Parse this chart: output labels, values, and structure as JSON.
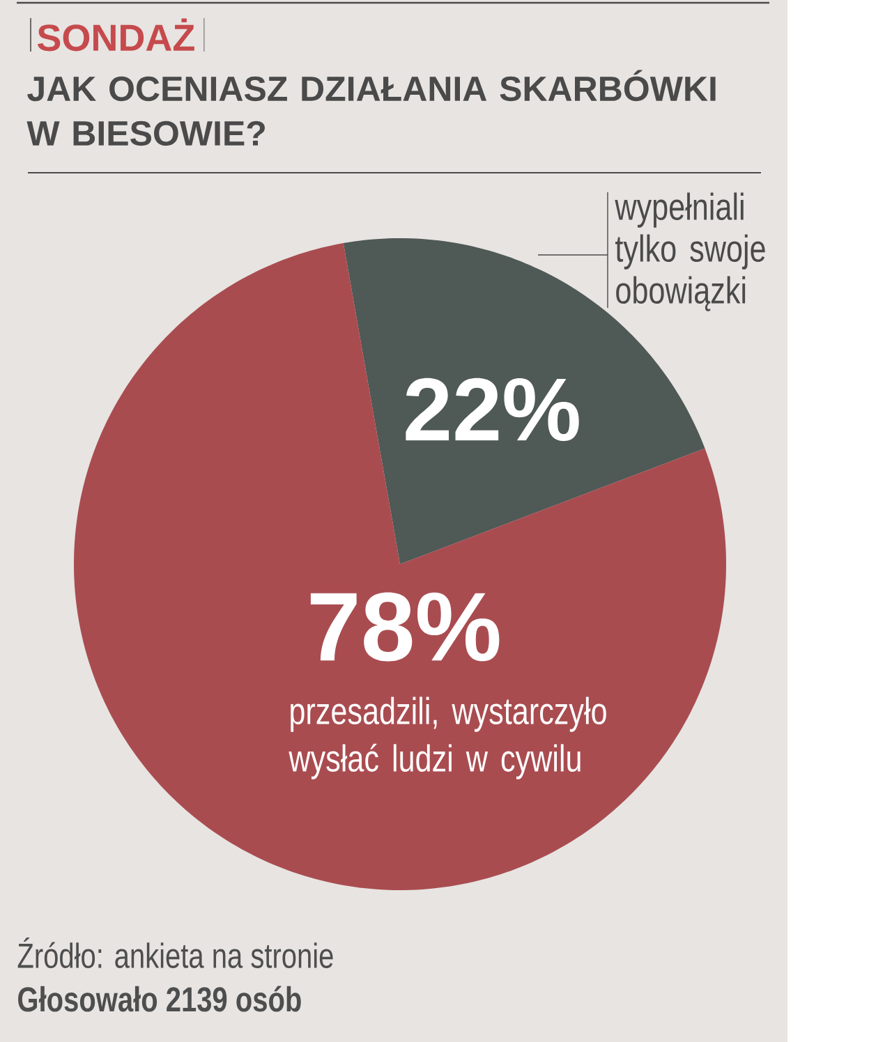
{
  "chart_data": {
    "type": "pie",
    "subtitle": "SONDAŻ",
    "title": "JAK OCENIASZ DZIAŁANIA SKARBÓWKI W BIESOWIE?",
    "categories": [
      "wypełniali tylko swoje obowiązki",
      "przesadzili, wystarczyło wysłać ludzi w cywilu"
    ],
    "values": [
      22,
      78
    ],
    "colors": [
      "#4f5956",
      "#a94c50"
    ],
    "value_labels": [
      "22%",
      "78%"
    ],
    "annotations": [
      "Źródło: ankieta na stronie",
      "Głosowało 2139 osób"
    ]
  }
}
